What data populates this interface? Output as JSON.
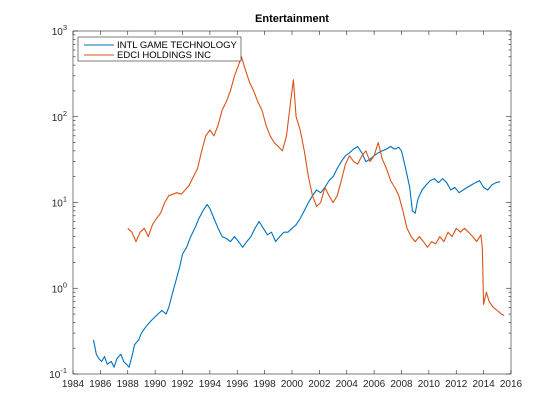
{
  "chart_data": {
    "type": "line",
    "title": "Entertainment",
    "xlabel": "",
    "ylabel": "",
    "y_scale": "log",
    "xlim": [
      1984,
      2016
    ],
    "ylim": [
      0.1,
      1000
    ],
    "grid": false,
    "legend_position": "top-left",
    "x_ticks": [
      1984,
      1986,
      1988,
      1990,
      1992,
      1994,
      1996,
      1998,
      2000,
      2002,
      2004,
      2006,
      2008,
      2010,
      2012,
      2014,
      2016
    ],
    "x_tick_labels": [
      "1984",
      "1986",
      "1988",
      "1990",
      "1992",
      "1994",
      "1996",
      "1998",
      "2000",
      "2002",
      "2004",
      "2006",
      "2008",
      "2010",
      "2012",
      "2014",
      "2016"
    ],
    "y_ticks": [
      {
        "value": 0.1,
        "base": "10",
        "exp": "-1"
      },
      {
        "value": 1,
        "base": "10",
        "exp": "0"
      },
      {
        "value": 10,
        "base": "10",
        "exp": "1"
      },
      {
        "value": 100,
        "base": "10",
        "exp": "2"
      },
      {
        "value": 1000,
        "base": "10",
        "exp": "3"
      }
    ],
    "series": [
      {
        "name": "INTL GAME TECHNOLOGY",
        "color": "#0072BD",
        "points": [
          [
            1985.5,
            0.25
          ],
          [
            1985.7,
            0.17
          ],
          [
            1985.9,
            0.15
          ],
          [
            1986.1,
            0.14
          ],
          [
            1986.3,
            0.16
          ],
          [
            1986.5,
            0.13
          ],
          [
            1986.8,
            0.14
          ],
          [
            1987.0,
            0.12
          ],
          [
            1987.2,
            0.15
          ],
          [
            1987.5,
            0.17
          ],
          [
            1987.7,
            0.14
          ],
          [
            1987.9,
            0.13
          ],
          [
            1988.1,
            0.12
          ],
          [
            1988.3,
            0.16
          ],
          [
            1988.5,
            0.22
          ],
          [
            1988.8,
            0.25
          ],
          [
            1989.0,
            0.3
          ],
          [
            1989.3,
            0.35
          ],
          [
            1989.6,
            0.4
          ],
          [
            1989.9,
            0.45
          ],
          [
            1990.2,
            0.5
          ],
          [
            1990.5,
            0.55
          ],
          [
            1990.8,
            0.5
          ],
          [
            1991.0,
            0.6
          ],
          [
            1991.2,
            0.8
          ],
          [
            1991.5,
            1.2
          ],
          [
            1991.8,
            1.8
          ],
          [
            1992.0,
            2.5
          ],
          [
            1992.3,
            3.0
          ],
          [
            1992.6,
            4.0
          ],
          [
            1992.9,
            5.0
          ],
          [
            1993.2,
            6.5
          ],
          [
            1993.5,
            8.0
          ],
          [
            1993.8,
            9.5
          ],
          [
            1994.0,
            8.5
          ],
          [
            1994.3,
            6.5
          ],
          [
            1994.6,
            5.0
          ],
          [
            1994.9,
            4.0
          ],
          [
            1995.2,
            3.8
          ],
          [
            1995.5,
            3.5
          ],
          [
            1995.8,
            4.0
          ],
          [
            1996.1,
            3.5
          ],
          [
            1996.4,
            3.0
          ],
          [
            1996.7,
            3.5
          ],
          [
            1997.0,
            4.0
          ],
          [
            1997.3,
            5.0
          ],
          [
            1997.6,
            6.0
          ],
          [
            1997.9,
            5.0
          ],
          [
            1998.2,
            4.2
          ],
          [
            1998.5,
            4.5
          ],
          [
            1998.8,
            3.5
          ],
          [
            1999.1,
            4.0
          ],
          [
            1999.4,
            4.5
          ],
          [
            1999.7,
            4.5
          ],
          [
            2000.0,
            5.0
          ],
          [
            2000.3,
            5.5
          ],
          [
            2000.6,
            6.5
          ],
          [
            2000.9,
            8.0
          ],
          [
            2001.2,
            10.0
          ],
          [
            2001.5,
            12.0
          ],
          [
            2001.8,
            14.0
          ],
          [
            2002.1,
            13.0
          ],
          [
            2002.4,
            15.0
          ],
          [
            2002.7,
            18.0
          ],
          [
            2003.0,
            20.0
          ],
          [
            2003.3,
            25.0
          ],
          [
            2003.6,
            30.0
          ],
          [
            2003.9,
            35.0
          ],
          [
            2004.2,
            38.0
          ],
          [
            2004.5,
            42.0
          ],
          [
            2004.8,
            45.0
          ],
          [
            2005.1,
            38.0
          ],
          [
            2005.4,
            30.0
          ],
          [
            2005.7,
            32.0
          ],
          [
            2006.0,
            35.0
          ],
          [
            2006.3,
            38.0
          ],
          [
            2006.6,
            40.0
          ],
          [
            2006.9,
            42.0
          ],
          [
            2007.2,
            45.0
          ],
          [
            2007.5,
            42.0
          ],
          [
            2007.8,
            44.0
          ],
          [
            2008.0,
            40.0
          ],
          [
            2008.3,
            25.0
          ],
          [
            2008.6,
            15.0
          ],
          [
            2008.8,
            8.0
          ],
          [
            2009.0,
            7.5
          ],
          [
            2009.2,
            11.0
          ],
          [
            2009.5,
            14.0
          ],
          [
            2009.8,
            16.0
          ],
          [
            2010.1,
            18.0
          ],
          [
            2010.4,
            19.0
          ],
          [
            2010.7,
            17.0
          ],
          [
            2011.0,
            19.0
          ],
          [
            2011.3,
            17.0
          ],
          [
            2011.6,
            14.0
          ],
          [
            2011.9,
            15.0
          ],
          [
            2012.2,
            13.0
          ],
          [
            2012.5,
            14.0
          ],
          [
            2012.8,
            15.0
          ],
          [
            2013.1,
            16.0
          ],
          [
            2013.4,
            17.0
          ],
          [
            2013.7,
            18.0
          ],
          [
            2014.0,
            15.0
          ],
          [
            2014.3,
            14.0
          ],
          [
            2014.6,
            16.0
          ],
          [
            2014.9,
            17.0
          ],
          [
            2015.2,
            17.5
          ]
        ]
      },
      {
        "name": "EDCI HOLDINGS INC",
        "color": "#D95319",
        "points": [
          [
            1988.0,
            5.0
          ],
          [
            1988.3,
            4.5
          ],
          [
            1988.6,
            3.5
          ],
          [
            1988.9,
            4.5
          ],
          [
            1989.2,
            5.0
          ],
          [
            1989.5,
            4.0
          ],
          [
            1989.8,
            5.5
          ],
          [
            1990.1,
            6.5
          ],
          [
            1990.4,
            7.5
          ],
          [
            1990.7,
            10.0
          ],
          [
            1991.0,
            12.0
          ],
          [
            1991.3,
            12.5
          ],
          [
            1991.6,
            13.0
          ],
          [
            1991.9,
            12.5
          ],
          [
            1992.2,
            14.0
          ],
          [
            1992.5,
            16.0
          ],
          [
            1992.8,
            20.0
          ],
          [
            1993.1,
            25.0
          ],
          [
            1993.4,
            40.0
          ],
          [
            1993.7,
            60.0
          ],
          [
            1994.0,
            70.0
          ],
          [
            1994.3,
            60.0
          ],
          [
            1994.6,
            80.0
          ],
          [
            1994.9,
            120.0
          ],
          [
            1995.2,
            150.0
          ],
          [
            1995.5,
            200.0
          ],
          [
            1995.8,
            300.0
          ],
          [
            1996.1,
            400.0
          ],
          [
            1996.3,
            500.0
          ],
          [
            1996.6,
            350.0
          ],
          [
            1996.9,
            250.0
          ],
          [
            1997.2,
            200.0
          ],
          [
            1997.5,
            150.0
          ],
          [
            1997.8,
            120.0
          ],
          [
            1998.1,
            80.0
          ],
          [
            1998.4,
            60.0
          ],
          [
            1998.7,
            50.0
          ],
          [
            1999.0,
            45.0
          ],
          [
            1999.3,
            40.0
          ],
          [
            1999.6,
            60.0
          ],
          [
            1999.9,
            150.0
          ],
          [
            2000.1,
            270.0
          ],
          [
            2000.3,
            100.0
          ],
          [
            2000.6,
            70.0
          ],
          [
            2000.9,
            40.0
          ],
          [
            2001.2,
            20.0
          ],
          [
            2001.5,
            12.0
          ],
          [
            2001.8,
            9.0
          ],
          [
            2002.1,
            10.0
          ],
          [
            2002.4,
            15.0
          ],
          [
            2002.7,
            12.0
          ],
          [
            2003.0,
            10.0
          ],
          [
            2003.3,
            12.0
          ],
          [
            2003.6,
            18.0
          ],
          [
            2003.9,
            28.0
          ],
          [
            2004.2,
            35.0
          ],
          [
            2004.5,
            30.0
          ],
          [
            2004.8,
            28.0
          ],
          [
            2005.1,
            35.0
          ],
          [
            2005.4,
            40.0
          ],
          [
            2005.7,
            30.0
          ],
          [
            2006.0,
            35.0
          ],
          [
            2006.3,
            50.0
          ],
          [
            2006.6,
            32.0
          ],
          [
            2006.9,
            25.0
          ],
          [
            2007.2,
            18.0
          ],
          [
            2007.5,
            15.0
          ],
          [
            2007.8,
            12.0
          ],
          [
            2008.1,
            8.0
          ],
          [
            2008.4,
            5.0
          ],
          [
            2008.7,
            4.0
          ],
          [
            2009.0,
            3.5
          ],
          [
            2009.3,
            4.0
          ],
          [
            2009.6,
            3.5
          ],
          [
            2009.9,
            3.0
          ],
          [
            2010.2,
            3.5
          ],
          [
            2010.5,
            3.3
          ],
          [
            2010.8,
            4.0
          ],
          [
            2011.1,
            3.5
          ],
          [
            2011.4,
            4.5
          ],
          [
            2011.7,
            4.0
          ],
          [
            2012.0,
            5.0
          ],
          [
            2012.3,
            4.5
          ],
          [
            2012.6,
            5.0
          ],
          [
            2012.9,
            4.5
          ],
          [
            2013.2,
            4.0
          ],
          [
            2013.5,
            3.5
          ],
          [
            2013.8,
            4.2
          ],
          [
            2013.9,
            3.0
          ],
          [
            2014.0,
            0.65
          ],
          [
            2014.2,
            0.9
          ],
          [
            2014.4,
            0.7
          ],
          [
            2014.7,
            0.6
          ],
          [
            2015.0,
            0.55
          ],
          [
            2015.3,
            0.5
          ],
          [
            2015.5,
            0.48
          ]
        ]
      }
    ]
  }
}
